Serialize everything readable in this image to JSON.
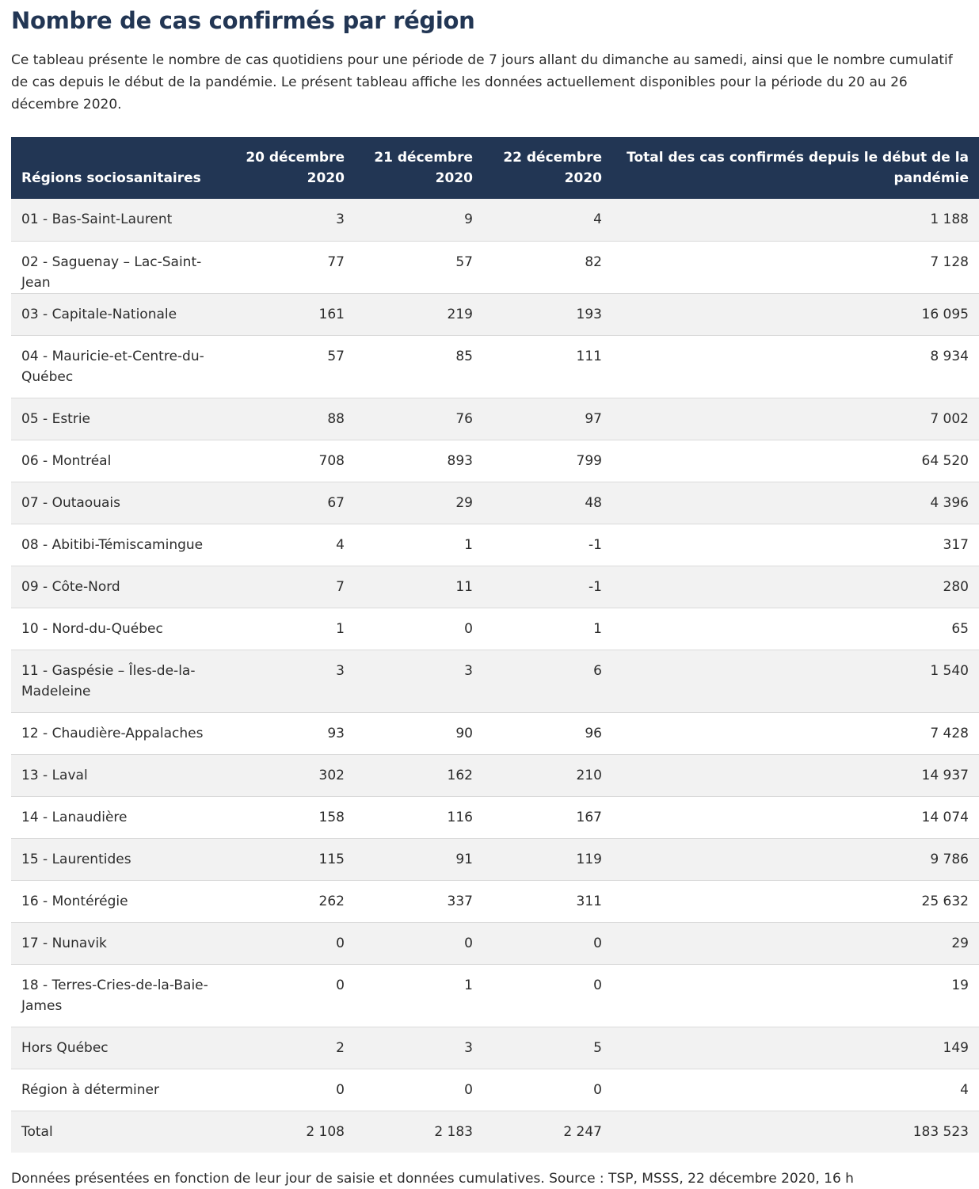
{
  "title": "Nombre de cas confirmés par région",
  "intro": "Ce tableau présente le nombre de cas quotidiens pour une période de 7 jours allant du dimanche au samedi, ainsi que le nombre cumulatif de cas depuis le début de la pandémie. Le présent tableau affiche les données actuellement disponibles pour la période du 20 au 26 décembre 2020.",
  "table": {
    "headers": [
      "Régions sociosanitaires",
      "20 décembre 2020",
      "21 décembre 2020",
      "22 décembre 2020",
      "Total des cas confirmés depuis le début de la pandémie"
    ],
    "rows": [
      [
        "01 - Bas-Saint-Laurent",
        "3",
        "9",
        "4",
        "1 188"
      ],
      [
        "02 - Saguenay – Lac-Saint-Jean",
        "77",
        "57",
        "82",
        "7 128"
      ],
      [
        "03 - Capitale-Nationale",
        "161",
        "219",
        "193",
        "16 095"
      ],
      [
        "04 - Mauricie-et-Centre-du-Québec",
        "57",
        "85",
        "111",
        "8 934"
      ],
      [
        "05 - Estrie",
        "88",
        "76",
        "97",
        "7 002"
      ],
      [
        "06 - Montréal",
        "708",
        "893",
        "799",
        "64 520"
      ],
      [
        "07 - Outaouais",
        "67",
        "29",
        "48",
        "4 396"
      ],
      [
        "08 - Abitibi-Témiscamingue",
        "4",
        "1",
        "-1",
        "317"
      ],
      [
        "09 - Côte-Nord",
        "7",
        "11",
        "-1",
        "280"
      ],
      [
        "10 - Nord-du-Québec",
        "1",
        "0",
        "1",
        "65"
      ],
      [
        "11 - Gaspésie – Îles-de-la-Madeleine",
        "3",
        "3",
        "6",
        "1 540"
      ],
      [
        "12 - Chaudière-Appalaches",
        "93",
        "90",
        "96",
        "7 428"
      ],
      [
        "13 - Laval",
        "302",
        "162",
        "210",
        "14 937"
      ],
      [
        "14 - Lanaudière",
        "158",
        "116",
        "167",
        "14 074"
      ],
      [
        "15 - Laurentides",
        "115",
        "91",
        "119",
        "9 786"
      ],
      [
        "16 - Montérégie",
        "262",
        "337",
        "311",
        "25 632"
      ],
      [
        "17 - Nunavik",
        "0",
        "0",
        "0",
        "29"
      ],
      [
        "18 - Terres-Cries-de-la-Baie-James",
        "0",
        "1",
        "0",
        "19"
      ],
      [
        "Hors Québec",
        "2",
        "3",
        "5",
        "149"
      ],
      [
        "Région à déterminer",
        "0",
        "0",
        "0",
        "4"
      ],
      [
        "Total",
        "2 108",
        "2 183",
        "2 247",
        "183 523"
      ]
    ]
  },
  "source": "Données présentées en fonction de leur jour de saisie et données cumulatives. Source : TSP, MSSS, 22 décembre 2020, 16 h"
}
